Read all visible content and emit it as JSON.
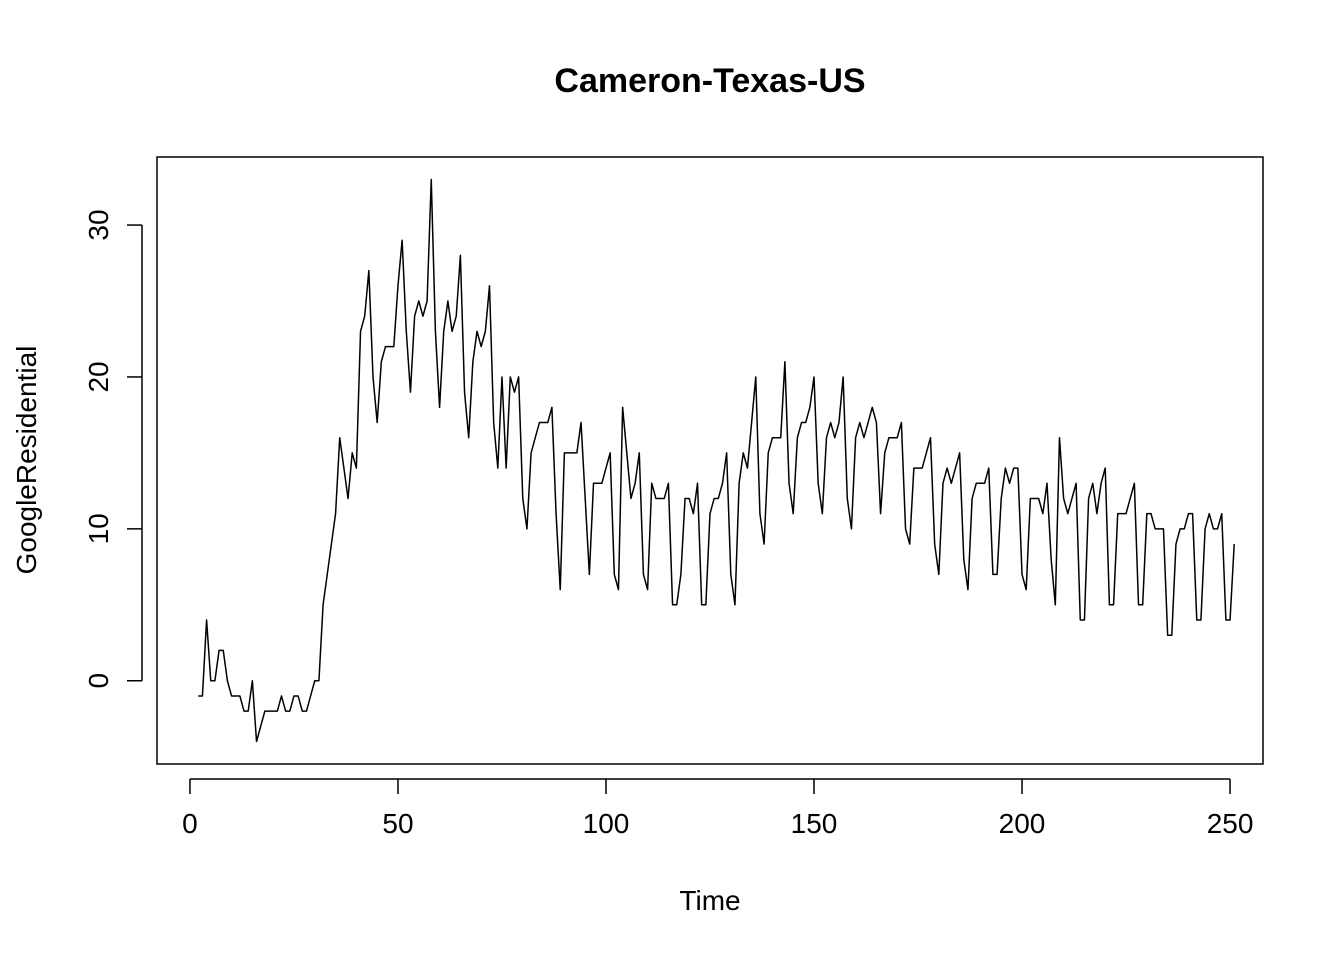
{
  "chart_data": {
    "type": "line",
    "title": "Cameron-Texas-US",
    "xlabel": "Time",
    "ylabel": "GoogleResidential",
    "xlim": [
      -7.92,
      257.92
    ],
    "ylim": [
      -5.48,
      34.48
    ],
    "xticks": [
      0,
      50,
      100,
      150,
      200,
      250
    ],
    "yticks": [
      0,
      10,
      20,
      30
    ],
    "grid": false,
    "legend": "none",
    "line_color": "#000000",
    "series": [
      {
        "x_start": 2,
        "values": [
          -1,
          -1,
          4,
          0,
          0,
          2,
          2,
          0,
          -1,
          -1,
          -1,
          -2,
          -2,
          0,
          -4,
          -3,
          -2,
          -2,
          -2,
          -2,
          -1,
          -2,
          -2,
          -1,
          -1,
          -2,
          -2,
          -1,
          0,
          0,
          5,
          7,
          9,
          11,
          16,
          14,
          12,
          15,
          14,
          23,
          24,
          27,
          20,
          17,
          21,
          22,
          22,
          22,
          26,
          29,
          23,
          19,
          24,
          25,
          24,
          25,
          33,
          23,
          18,
          23,
          25,
          23,
          24,
          28,
          19,
          16,
          21,
          23,
          22,
          23,
          26,
          17,
          14,
          20,
          14,
          20,
          19,
          20,
          12,
          10,
          15,
          16,
          17,
          17,
          17,
          18,
          11,
          6,
          15,
          15,
          15,
          15,
          17,
          12,
          7,
          13,
          13,
          13,
          14,
          15,
          7,
          6,
          18,
          15,
          12,
          13,
          15,
          7,
          6,
          13,
          12,
          12,
          12,
          13,
          5,
          5,
          7,
          12,
          12,
          11,
          13,
          5,
          5,
          11,
          12,
          12,
          13,
          15,
          7,
          5,
          13,
          15,
          14,
          17,
          20,
          11,
          9,
          15,
          16,
          16,
          16,
          21,
          13,
          11,
          16,
          17,
          17,
          18,
          20,
          13,
          11,
          16,
          17,
          16,
          17,
          20,
          12,
          10,
          16,
          17,
          16,
          17,
          18,
          17,
          11,
          15,
          16,
          16,
          16,
          17,
          10,
          9,
          14,
          14,
          14,
          15,
          16,
          9,
          7,
          13,
          14,
          13,
          14,
          15,
          8,
          6,
          12,
          13,
          13,
          13,
          14,
          7,
          7,
          12,
          14,
          13,
          14,
          14,
          7,
          6,
          12,
          12,
          12,
          11,
          13,
          8,
          5,
          16,
          12,
          11,
          12,
          13,
          4,
          4,
          12,
          13,
          11,
          13,
          14,
          5,
          5,
          11,
          11,
          11,
          12,
          13,
          5,
          5,
          11,
          11,
          10,
          10,
          10,
          3,
          3,
          9,
          10,
          10,
          11,
          11,
          4,
          4,
          10,
          11,
          10,
          10,
          11,
          4,
          4,
          9
        ]
      }
    ]
  }
}
